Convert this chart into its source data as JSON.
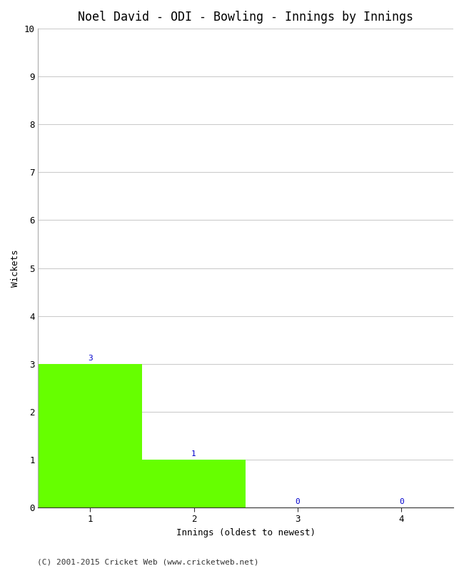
{
  "title": "Noel David - ODI - Bowling - Innings by Innings",
  "xlabel": "Innings (oldest to newest)",
  "ylabel": "Wickets",
  "categories": [
    1,
    2,
    3,
    4
  ],
  "values": [
    3,
    1,
    0,
    0
  ],
  "bar_color": "#66ff00",
  "ylim": [
    0,
    10
  ],
  "yticks": [
    0,
    1,
    2,
    3,
    4,
    5,
    6,
    7,
    8,
    9,
    10
  ],
  "xticks": [
    1,
    2,
    3,
    4
  ],
  "annotation_color": "#0000cc",
  "annotation_fontsize": 8,
  "title_fontsize": 12,
  "label_fontsize": 9,
  "tick_fontsize": 9,
  "background_color": "#ffffff",
  "grid_color": "#cccccc",
  "footer": "(C) 2001-2015 Cricket Web (www.cricketweb.net)",
  "footer_fontsize": 8,
  "xlim": [
    0.5,
    4.5
  ]
}
